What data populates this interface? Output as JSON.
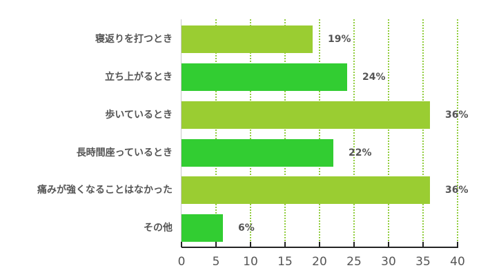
{
  "chart_data": {
    "type": "bar",
    "orientation": "horizontal",
    "title": "",
    "xlabel": "",
    "ylabel": "",
    "xlim": [
      0,
      40
    ],
    "x_ticks": [
      "0",
      "5",
      "10",
      "15",
      "20",
      "25",
      "30",
      "35",
      "40"
    ],
    "grid": "vertical dotted",
    "categories": [
      "寝返りを打つとき",
      "立ち上がるとき",
      "歩いているとき",
      "長時間座っているとき",
      "痛みが強くなることはなかった",
      "その他"
    ],
    "values": [
      19,
      24,
      36,
      22,
      36,
      6
    ],
    "value_labels": [
      "19%",
      "24%",
      "36%",
      "22%",
      "36%",
      "6%"
    ],
    "bar_colors": [
      "#9acd32",
      "#32cd32",
      "#9acd32",
      "#32cd32",
      "#9acd32",
      "#32cd32"
    ],
    "grid_color": "#8fcc3a"
  }
}
